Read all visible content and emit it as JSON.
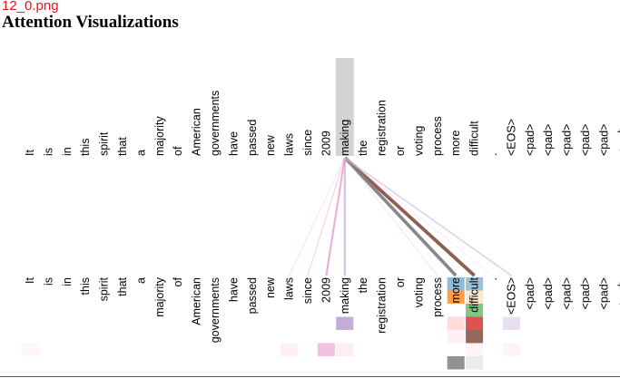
{
  "header": {
    "file_label": "12_0.png",
    "title": "Attention Visualizations"
  },
  "tokens": [
    "It",
    "is",
    "in",
    "this",
    "spirit",
    "that",
    "a",
    "majority",
    "of",
    "American",
    "governments",
    "have",
    "passed",
    "new",
    "laws",
    "since",
    "2009",
    "making",
    "the",
    "registration",
    "or",
    "voting",
    "process",
    "more",
    "difficult",
    ".",
    "<EOS>",
    "<pad>",
    "<pad>",
    "<pad>",
    "<pad>",
    "<pad>",
    "<pad>"
  ],
  "selected_token_index": 17,
  "colors": {
    "selected_highlight": "#d3d3d3",
    "bottom_rule": "#c0282a"
  },
  "attention_links": [
    {
      "to": 24,
      "color": "#8c564b",
      "weight": 0.95
    },
    {
      "to": 23,
      "color": "#7f7f7f",
      "weight": 0.9
    },
    {
      "to": 17,
      "color": "#c5b0d5",
      "weight": 0.55
    },
    {
      "to": 16,
      "color": "#e377c2",
      "weight": 0.45
    },
    {
      "to": 15,
      "color": "#f7b6d2",
      "weight": 0.3
    },
    {
      "to": 14,
      "color": "#f7b6d2",
      "weight": 0.15
    },
    {
      "to": 26,
      "color": "#c5b0d5",
      "weight": 0.35
    },
    {
      "to": 25,
      "color": "#e9dff0",
      "weight": 0.2
    },
    {
      "to": 22,
      "color": "#f7b6d2",
      "weight": 0.15
    }
  ],
  "head_cells": [
    {
      "token": 23,
      "row": 0,
      "color": "#1f77b4",
      "alpha": 0.5
    },
    {
      "token": 24,
      "row": 0,
      "color": "#1f77b4",
      "alpha": 0.45
    },
    {
      "token": 23,
      "row": 1,
      "color": "#ff7f0e",
      "alpha": 0.75
    },
    {
      "token": 24,
      "row": 1,
      "color": "#ffbb78",
      "alpha": 0.35
    },
    {
      "token": 23,
      "row": 2,
      "color": "#ffffff",
      "alpha": 0.0
    },
    {
      "token": 24,
      "row": 2,
      "color": "#2ca02c",
      "alpha": 0.6
    },
    {
      "token": 23,
      "row": 3,
      "color": "#ff9896",
      "alpha": 0.35
    },
    {
      "token": 24,
      "row": 3,
      "color": "#d62728",
      "alpha": 0.8
    },
    {
      "token": 17,
      "row": 3,
      "color": "#9467bd",
      "alpha": 0.55
    },
    {
      "token": 26,
      "row": 3,
      "color": "#c5b0d5",
      "alpha": 0.4
    },
    {
      "token": 23,
      "row": 4,
      "color": "#f7b6d2",
      "alpha": 0.2
    },
    {
      "token": 24,
      "row": 4,
      "color": "#8c564b",
      "alpha": 0.9
    },
    {
      "token": 0,
      "row": 5,
      "color": "#f7b6d2",
      "alpha": 0.12
    },
    {
      "token": 14,
      "row": 5,
      "color": "#f7b6d2",
      "alpha": 0.2
    },
    {
      "token": 16,
      "row": 5,
      "color": "#e377c2",
      "alpha": 0.45
    },
    {
      "token": 17,
      "row": 5,
      "color": "#f7b6d2",
      "alpha": 0.25
    },
    {
      "token": 24,
      "row": 5,
      "color": "#f7b6d2",
      "alpha": 0.15
    },
    {
      "token": 26,
      "row": 5,
      "color": "#f7b6d2",
      "alpha": 0.15
    },
    {
      "token": 23,
      "row": 6,
      "color": "#7f7f7f",
      "alpha": 0.85
    },
    {
      "token": 24,
      "row": 6,
      "color": "#c7c7c7",
      "alpha": 0.35
    }
  ]
}
